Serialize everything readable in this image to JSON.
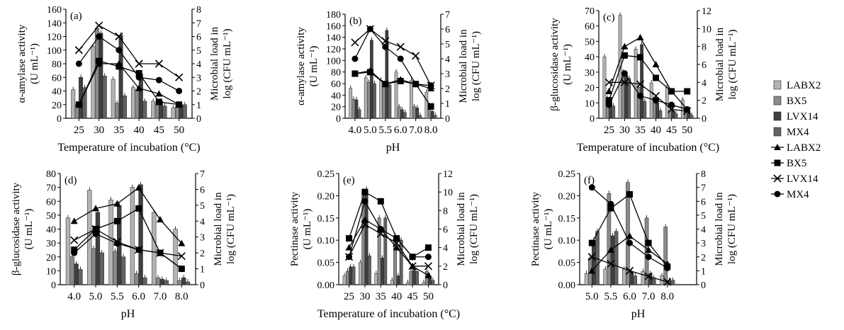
{
  "legend": {
    "bars": [
      {
        "name": "LABX2",
        "color": "#b3b3b3"
      },
      {
        "name": "BX5",
        "color": "#8a8a8a"
      },
      {
        "name": "LVX14",
        "color": "#3f3f3f"
      },
      {
        "name": "MX4",
        "color": "#626262"
      }
    ],
    "lines": [
      {
        "name": "LABX2",
        "marker": "triangle"
      },
      {
        "name": "BX5",
        "marker": "square"
      },
      {
        "name": "LVX14",
        "marker": "cross"
      },
      {
        "name": "MX4",
        "marker": "circle"
      }
    ]
  },
  "chart_data": [
    {
      "panel": "(a)",
      "type": "bar+line",
      "xlabel": "Temperature of incubation (°C)",
      "ylabel": [
        "α-amylase activity",
        "(U mL⁻¹)"
      ],
      "y2label": [
        "Microbial load in",
        "log (CFU mL⁻¹)"
      ],
      "categories": [
        "25",
        "30",
        "35",
        "40",
        "45",
        "50"
      ],
      "yticks": [
        "0",
        "20",
        "40",
        "60",
        "80",
        "100",
        "120",
        "140",
        "160"
      ],
      "ylim": [
        0,
        160
      ],
      "y2ticks": [
        "0",
        "1",
        "2",
        "3",
        "4",
        "5",
        "6",
        "7",
        "8"
      ],
      "y2lim": [
        0,
        8
      ],
      "bars": [
        {
          "name": "LABX2",
          "values": [
            42,
            105,
            57,
            45,
            25,
            15
          ]
        },
        {
          "name": "BX5",
          "values": [
            20,
            132,
            22,
            42,
            22,
            18
          ]
        },
        {
          "name": "LVX14",
          "values": [
            60,
            125,
            122,
            65,
            25,
            20
          ]
        },
        {
          "name": "MX4",
          "values": [
            45,
            62,
            33,
            25,
            18,
            20
          ]
        }
      ],
      "lines": [
        {
          "name": "LABX2",
          "values": [
            1.0,
            4.0,
            4.0,
            2.2,
            1.8,
            1.0
          ]
        },
        {
          "name": "BX5",
          "values": [
            1.0,
            4.2,
            3.8,
            3.3,
            1.2,
            1.0
          ]
        },
        {
          "name": "LVX14",
          "values": [
            5.0,
            6.8,
            6.0,
            4.0,
            4.0,
            3.0
          ]
        },
        {
          "name": "MX4",
          "values": [
            4.0,
            6.0,
            5.0,
            3.0,
            2.8,
            2.0
          ]
        }
      ]
    },
    {
      "panel": "(b)",
      "type": "bar+line",
      "xlabel": "pH",
      "ylabel": [
        "α-amylase activity",
        "(U mL⁻¹)"
      ],
      "y2label": [
        "Microbial load in",
        "log (CFU mL⁻¹)"
      ],
      "categories": [
        "4.0",
        "5.0",
        "5.5",
        "6.0",
        "7.0",
        "8.0"
      ],
      "yticks": [
        "0",
        "20",
        "40",
        "60",
        "80",
        "100",
        "120",
        "140",
        "160",
        "180"
      ],
      "ylim": [
        0,
        180
      ],
      "y2ticks": [
        "0",
        "1",
        "2",
        "3",
        "4",
        "5",
        "6",
        "7"
      ],
      "y2lim": [
        0,
        7
      ],
      "bars": [
        {
          "name": "LABX2",
          "values": [
            52,
            70,
            66,
            80,
            65,
            45
          ]
        },
        {
          "name": "BX5",
          "values": [
            33,
            62,
            55,
            20,
            20,
            15
          ]
        },
        {
          "name": "LVX14",
          "values": [
            32,
            135,
            152,
            15,
            18,
            12
          ]
        },
        {
          "name": "MX4",
          "values": [
            15,
            60,
            58,
            10,
            5,
            5
          ]
        }
      ],
      "lines": [
        {
          "name": "LABX2",
          "values": [
            3.0,
            3.2,
            2.3,
            2.6,
            2.3,
            2.0
          ]
        },
        {
          "name": "BX5",
          "values": [
            3.0,
            3.1,
            2.3,
            2.5,
            2.3,
            0.8
          ]
        },
        {
          "name": "LVX14",
          "values": [
            5.1,
            6.0,
            5.2,
            4.8,
            4.2,
            2.2
          ]
        },
        {
          "name": "MX4",
          "values": [
            4.0,
            6.0,
            4.8,
            4.0,
            2.3,
            2.2
          ]
        }
      ]
    },
    {
      "panel": "(c)",
      "type": "bar+line",
      "xlabel": "Temperature of incubation (°C)",
      "ylabel": [
        "β-glucosidase activity",
        "(U mL⁻¹)"
      ],
      "y2label": [
        "Microbial load in",
        "log (CFU mL⁻¹)"
      ],
      "categories": [
        "25",
        "30",
        "35",
        "40",
        "45",
        "50"
      ],
      "yticks": [
        "0",
        "10",
        "20",
        "30",
        "40",
        "50",
        "60",
        "70"
      ],
      "ylim": [
        0,
        70
      ],
      "y2ticks": [
        "0",
        "2",
        "4",
        "6",
        "8",
        "10",
        "12"
      ],
      "y2lim": [
        0,
        12
      ],
      "bars": [
        {
          "name": "LABX2",
          "values": [
            40,
            67,
            45,
            23,
            20,
            12
          ]
        },
        {
          "name": "BX5",
          "values": [
            13,
            30,
            20,
            10,
            5,
            5
          ]
        },
        {
          "name": "LVX14",
          "values": [
            10,
            28,
            48,
            10,
            5,
            4
          ]
        },
        {
          "name": "MX4",
          "values": [
            8,
            26,
            11,
            5,
            3,
            2
          ]
        }
      ],
      "lines": [
        {
          "name": "LABX2",
          "values": [
            3.0,
            8.0,
            9.0,
            6.0,
            3.0,
            1.0
          ]
        },
        {
          "name": "BX5",
          "values": [
            2.0,
            7.0,
            6.8,
            4.5,
            3.0,
            3.0
          ]
        },
        {
          "name": "LVX14",
          "values": [
            4.0,
            4.0,
            3.8,
            2.5,
            1.0,
            0.8
          ]
        },
        {
          "name": "MX4",
          "values": [
            1.5,
            5.0,
            2.5,
            2.0,
            1.5,
            1.0
          ]
        }
      ]
    },
    {
      "panel": "(d)",
      "type": "bar+line",
      "xlabel": "pH",
      "ylabel": [
        "β-glucosidase activity",
        "(U mL⁻¹)"
      ],
      "y2label": [
        "Microbial load in",
        "log (CFU mL⁻¹)"
      ],
      "categories": [
        "4.0",
        "5.0",
        "5.5",
        "6.0",
        "7.0",
        "8.0"
      ],
      "yticks": [
        "0",
        "10",
        "20",
        "30",
        "40",
        "50",
        "60",
        "70",
        "80"
      ],
      "ylim": [
        0,
        80
      ],
      "y2ticks": [
        "0",
        "1",
        "2",
        "3",
        "4",
        "5",
        "6",
        "7"
      ],
      "y2lim": [
        0,
        7
      ],
      "bars": [
        {
          "name": "LABX2",
          "values": [
            48,
            68,
            61,
            70,
            52,
            40
          ]
        },
        {
          "name": "BX5",
          "values": [
            20,
            26,
            24,
            8,
            5,
            3
          ]
        },
        {
          "name": "LVX14",
          "values": [
            15,
            52,
            57,
            72,
            4,
            5
          ]
        },
        {
          "name": "MX4",
          "values": [
            11,
            23,
            20,
            5,
            3,
            2
          ]
        }
      ],
      "lines": [
        {
          "name": "LABX2",
          "values": [
            4.0,
            4.8,
            5.1,
            6.1,
            4.1,
            2.6
          ]
        },
        {
          "name": "BX5",
          "values": [
            2.2,
            3.5,
            4.0,
            4.8,
            2.0,
            1.0
          ]
        },
        {
          "name": "LVX14",
          "values": [
            2.8,
            3.5,
            2.7,
            2.2,
            2.0,
            1.8
          ]
        },
        {
          "name": "MX4",
          "values": [
            2.0,
            3.2,
            2.6,
            2.2,
            2.0,
            1.0
          ]
        }
      ]
    },
    {
      "panel": "(e)",
      "type": "bar+line",
      "xlabel": "Temperature of incubation (°C)",
      "ylabel": [
        "Pectinase activity",
        "(U mL⁻¹)"
      ],
      "y2label": [
        "Microbial load in",
        "log (CFU mL⁻¹)"
      ],
      "categories": [
        "25",
        "30",
        "35",
        "40",
        "45",
        "50"
      ],
      "yticks": [
        "0.00",
        "0.05",
        "0.10",
        "0.15",
        "0.20",
        "0.25"
      ],
      "ylim": [
        0,
        0.25
      ],
      "y2ticks": [
        "0",
        "2",
        "4",
        "6",
        "8",
        "10",
        "12"
      ],
      "y2lim": [
        0,
        12
      ],
      "bars": [
        {
          "name": "LABX2",
          "values": [
            0.02,
            0.05,
            0.025,
            0.01,
            0.005,
            0.005
          ]
        },
        {
          "name": "BX5",
          "values": [
            0.03,
            0.21,
            0.15,
            0.11,
            0.03,
            0.03
          ]
        },
        {
          "name": "LVX14",
          "values": [
            0.04,
            0.215,
            0.06,
            0.02,
            0.035,
            0.02
          ]
        },
        {
          "name": "MX4",
          "values": [
            0.04,
            0.065,
            0.15,
            0.1,
            0.03,
            0.01
          ]
        }
      ],
      "lines": [
        {
          "name": "LABX2",
          "values": [
            4.0,
            7.0,
            6.0,
            4.0,
            2.0,
            1.0
          ]
        },
        {
          "name": "BX5",
          "values": [
            5.0,
            10.0,
            9.0,
            5.0,
            3.0,
            4.0
          ]
        },
        {
          "name": "LVX14",
          "values": [
            3.0,
            6.5,
            5.5,
            4.5,
            2.0,
            2.0
          ]
        },
        {
          "name": "MX4",
          "values": [
            3.0,
            9.0,
            6.0,
            5.0,
            3.0,
            3.0
          ]
        }
      ]
    },
    {
      "panel": "(f)",
      "type": "bar+line",
      "xlabel": "pH",
      "ylabel": [
        "Pectinase activity",
        "(U mL⁻¹)"
      ],
      "y2label": [
        "Microbial load in",
        "log (CFU mL⁻¹)"
      ],
      "categories": [
        "5.0",
        "5.5",
        "6.0",
        "7.0",
        "8.0"
      ],
      "yticks": [
        "0.00",
        "0.05",
        "0.10",
        "0.15",
        "0.20",
        "0.25"
      ],
      "ylim": [
        0,
        0.25
      ],
      "y2ticks": [
        "0",
        "1",
        "2",
        "3",
        "4",
        "5",
        "6",
        "7",
        "8"
      ],
      "y2lim": [
        0,
        8
      ],
      "bars": [
        {
          "name": "LABX2",
          "values": [
            0.025,
            0.035,
            0.035,
            0.03,
            0.02
          ]
        },
        {
          "name": "BX5",
          "values": [
            0.06,
            0.205,
            0.23,
            0.15,
            0.13
          ]
        },
        {
          "name": "LVX14",
          "values": [
            0.1,
            0.11,
            0.03,
            0.025,
            0.01
          ]
        },
        {
          "name": "MX4",
          "values": [
            0.12,
            0.12,
            0.02,
            0.015,
            0.01
          ]
        }
      ],
      "lines": [
        {
          "name": "LABX2",
          "values": [
            1.0,
            2.5,
            3.5,
            2.5,
            1.5
          ]
        },
        {
          "name": "BX5",
          "values": [
            3.0,
            5.5,
            6.5,
            3.0,
            1.3
          ]
        },
        {
          "name": "LVX14",
          "values": [
            2.0,
            1.5,
            1.0,
            0.6,
            0.2
          ]
        },
        {
          "name": "MX4",
          "values": [
            7.0,
            5.8,
            3.0,
            2.0,
            1.2
          ]
        }
      ]
    }
  ]
}
